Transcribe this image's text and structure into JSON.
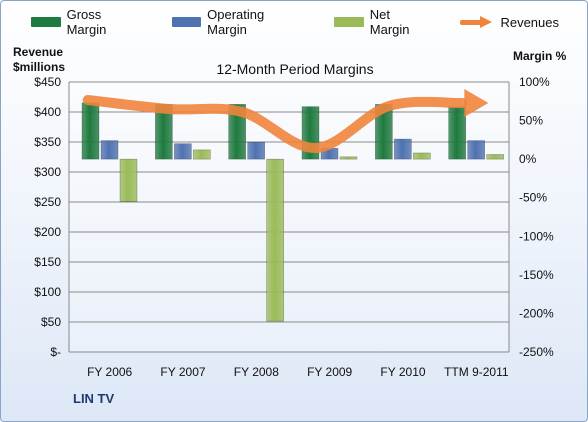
{
  "legend": [
    {
      "label": "Gross Margin",
      "color": "#1f7a3f",
      "kind": "bar"
    },
    {
      "label": "Operating Margin",
      "color": "#4f72b0",
      "kind": "bar"
    },
    {
      "label": "Net Margin",
      "color": "#9bbb59",
      "kind": "bar"
    },
    {
      "label": "Revenues",
      "color": "#f0843c",
      "kind": "line"
    }
  ],
  "left_axis_title": [
    "Revenue",
    "$millions"
  ],
  "right_axis_title": "Margin %",
  "company": "LIN TV",
  "chart_data": {
    "type": "bar",
    "title": "12-Month Period Margins",
    "categories": [
      "FY 2006",
      "FY 2007",
      "FY 2008",
      "FY 2009",
      "FY 2010",
      "TTM 9-2011"
    ],
    "series": [
      {
        "name": "Gross Margin",
        "axis": "right",
        "values": [
          73,
          71,
          71,
          68,
          71,
          68
        ],
        "color": "#1f7a3f"
      },
      {
        "name": "Operating Margin",
        "axis": "right",
        "values": [
          24,
          20,
          22,
          14,
          26,
          24
        ],
        "color": "#4f72b0"
      },
      {
        "name": "Net Margin",
        "axis": "right",
        "values": [
          -55,
          12,
          -210,
          3,
          8,
          6
        ],
        "color": "#9bbb59"
      },
      {
        "name": "Revenues",
        "axis": "left",
        "type": "line",
        "values": [
          420,
          405,
          400,
          340,
          410,
          415
        ],
        "color": "#f0843c"
      }
    ],
    "left_axis": {
      "ticks": [
        "$-",
        "$50",
        "$100",
        "$150",
        "$200",
        "$250",
        "$300",
        "$350",
        "$400",
        "$450"
      ],
      "min": 0,
      "max": 450
    },
    "right_axis": {
      "ticks": [
        "-250%",
        "-200%",
        "-150%",
        "-100%",
        "-50%",
        "0%",
        "50%",
        "100%"
      ],
      "min": -250,
      "max": 100
    },
    "grid": true
  }
}
